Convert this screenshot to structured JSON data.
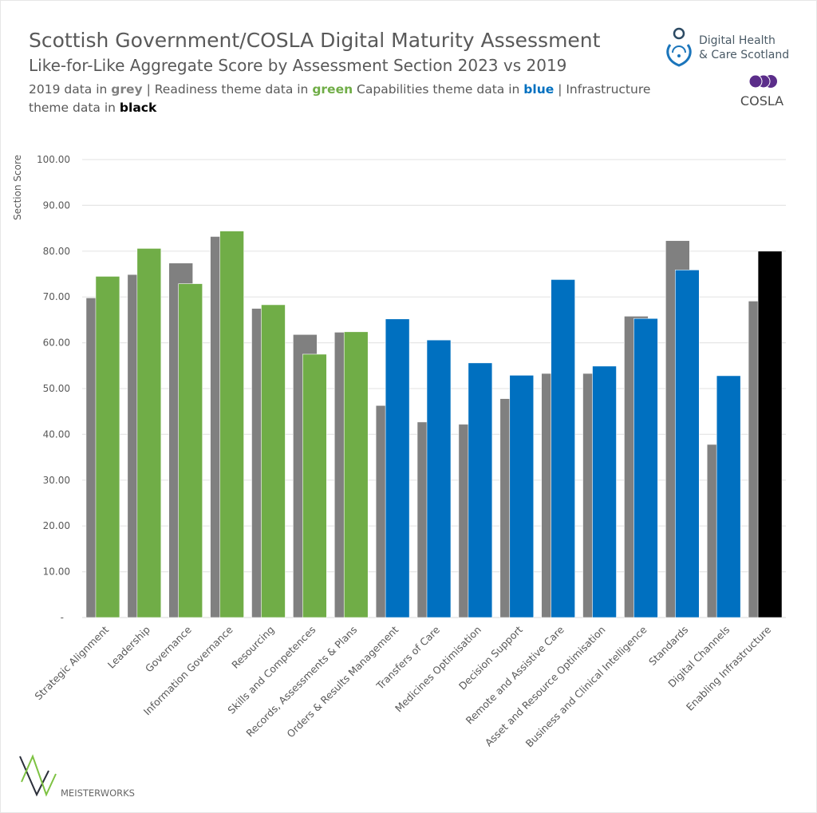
{
  "header": {
    "title": "Scottish Government/COSLA Digital Maturity Assessment",
    "subtitle": "Like-for-Like Aggregate Score by Assessment Section 2023 vs 2019",
    "legend_line1": [
      {
        "text": "2019 data in ",
        "bold": false,
        "color": "#595959"
      },
      {
        "text": "grey",
        "bold": true,
        "color": "#808080"
      },
      {
        "text": " | Readiness theme data in ",
        "bold": false,
        "color": "#595959"
      },
      {
        "text": "green",
        "bold": true,
        "color": "#70AD47"
      },
      {
        "text": " Capabilities theme data in ",
        "bold": false,
        "color": "#595959"
      },
      {
        "text": "blue",
        "bold": true,
        "color": "#0070C0"
      },
      {
        "text": " | Infrastructure",
        "bold": false,
        "color": "#595959"
      }
    ],
    "legend_line2": [
      {
        "text": "theme data in ",
        "bold": false,
        "color": "#595959"
      },
      {
        "text": "black",
        "bold": true,
        "color": "#000000"
      }
    ]
  },
  "logos": {
    "dhcs_line1": "Digital Health",
    "dhcs_line2": "& Care Scotland",
    "cosla": "COSLA",
    "meisterworks": "MEISTERWORKS"
  },
  "colors": {
    "grey": "#808080",
    "readiness": "#70AD47",
    "capabilities": "#0070C0",
    "infrastructure": "#000000",
    "grid": "#e6e6e6",
    "text": "#595959"
  },
  "chart_data": {
    "type": "bar",
    "title": "Like-for-Like Aggregate Score by Assessment Section 2023 vs 2019",
    "ylabel": "Section Score",
    "xlabel": "",
    "ylim": [
      0,
      100
    ],
    "yticks": [
      "-",
      "10.00",
      "20.00",
      "30.00",
      "40.00",
      "50.00",
      "60.00",
      "70.00",
      "80.00",
      "90.00",
      "100.00"
    ],
    "grid": true,
    "categories": [
      "Strategic Alignment",
      "Leadership",
      "Governance",
      "Information Governance",
      "Resourcing",
      "Skills and Competences",
      "Records, Assessments & Plans",
      "Orders & Results Management",
      "Transfers of Care",
      "Medicines Optimisation",
      "Decision Support",
      "Remote and Assistive Care",
      "Asset and Resource Optimisation",
      "Business and Clinical Intelligence",
      "Standards",
      "Digital Channels",
      "Enabling Infrastructure"
    ],
    "themes": [
      "readiness",
      "readiness",
      "readiness",
      "readiness",
      "readiness",
      "readiness",
      "readiness",
      "capabilities",
      "capabilities",
      "capabilities",
      "capabilities",
      "capabilities",
      "capabilities",
      "capabilities",
      "capabilities",
      "capabilities",
      "infrastructure"
    ],
    "series": [
      {
        "name": "2019",
        "values": [
          69.8,
          74.9,
          77.4,
          83.2,
          67.5,
          61.8,
          62.3,
          46.3,
          42.7,
          42.2,
          47.8,
          53.3,
          53.3,
          65.8,
          82.3,
          37.8,
          69.1
        ]
      },
      {
        "name": "2023",
        "values": [
          74.5,
          80.6,
          72.9,
          84.4,
          68.3,
          57.5,
          62.4,
          65.2,
          60.6,
          55.6,
          52.9,
          73.8,
          54.9,
          65.3,
          75.9,
          52.8,
          80.0
        ]
      }
    ]
  }
}
